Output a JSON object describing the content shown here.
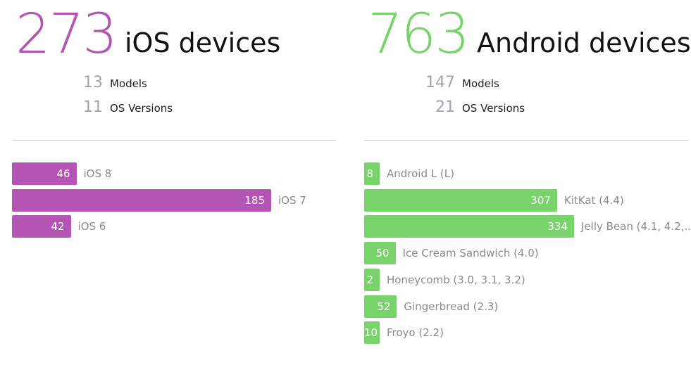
{
  "panels": [
    {
      "count": 273,
      "title": "iOS devices",
      "stats": [
        {
          "value": 13,
          "label": "Models"
        },
        {
          "value": 11,
          "label": "OS Versions"
        }
      ],
      "chart": {
        "type": "bar",
        "color": "#b455b6",
        "categories": [
          "iOS 8",
          "iOS 7",
          "iOS 6"
        ],
        "values": [
          46,
          185,
          42
        ]
      }
    },
    {
      "count": 763,
      "title": "Android devices",
      "stats": [
        {
          "value": 147,
          "label": "Models"
        },
        {
          "value": 21,
          "label": "OS Versions"
        }
      ],
      "chart": {
        "type": "bar",
        "color": "#77d36a",
        "categories": [
          "Android L (L)",
          "KitKat (4.4)",
          "Jelly Bean (4.1, 4.2,...",
          "Ice Cream Sandwich (4.0)",
          "Honeycomb (3.0, 3.1, 3.2)",
          "Gingerbread (2.3)",
          "Froyo (2.2)"
        ],
        "values": [
          8,
          307,
          334,
          50,
          2,
          52,
          10
        ]
      }
    }
  ]
}
